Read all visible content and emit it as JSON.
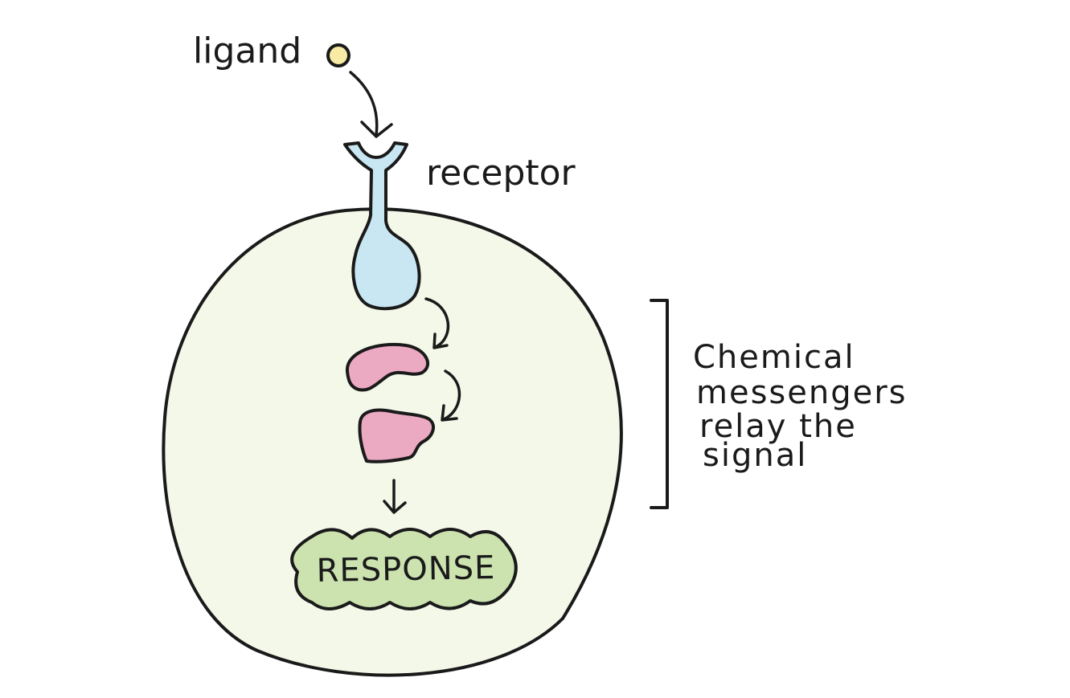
{
  "diagram": {
    "labels": {
      "ligand": "ligand",
      "receptor": "receptor",
      "messengers_line1": "Chemical",
      "messengers_line2": "messengers",
      "messengers_line3": "relay the",
      "messengers_line4": "signal",
      "response": "RESPONSE"
    },
    "colors": {
      "cell_fill": "#f4f8e9",
      "receptor_fill": "#c9e7f2",
      "ligand_fill": "#f8eba6",
      "messenger_fill": "#eba9c2",
      "response_fill": "#cce3b0",
      "outline": "#1a1a1a"
    }
  }
}
